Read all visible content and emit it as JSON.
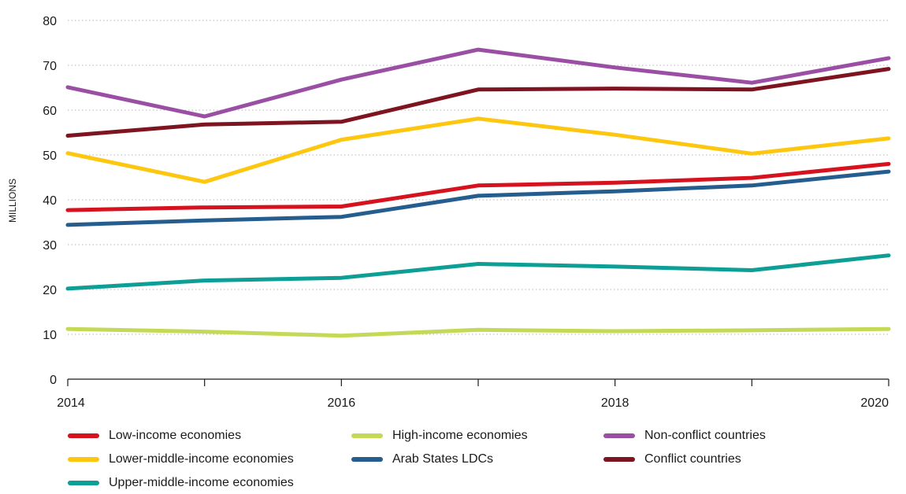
{
  "chart_data": {
    "type": "line",
    "title": "",
    "xlabel": "",
    "ylabel": "MILLIONS",
    "x": [
      2014,
      2015,
      2016,
      2017,
      2018,
      2019,
      2020
    ],
    "x_tick_labels": [
      "2014",
      "2016",
      "2018",
      "2020"
    ],
    "y_tick_labels": [
      "0",
      "10",
      "20",
      "30",
      "40",
      "50",
      "60",
      "70",
      "80"
    ],
    "ylim": [
      0,
      80
    ],
    "grid": "horizontal dotted",
    "legend_position": "bottom",
    "series": [
      {
        "name": "Low-income economies",
        "color": "#d7121f",
        "values": [
          37.7,
          38.3,
          38.5,
          43.2,
          43.8,
          44.9,
          48.0
        ]
      },
      {
        "name": "Lower-middle-income economies",
        "color": "#fdc70f",
        "values": [
          50.4,
          44.0,
          53.4,
          58.1,
          54.5,
          50.3,
          53.7
        ]
      },
      {
        "name": "Upper-middle-income economies",
        "color": "#0d9e95",
        "values": [
          20.2,
          22.0,
          22.6,
          25.7,
          25.1,
          24.3,
          27.6
        ]
      },
      {
        "name": "High-income economies",
        "color": "#c4d957",
        "values": [
          11.2,
          10.6,
          9.7,
          11.0,
          10.7,
          10.9,
          11.2
        ]
      },
      {
        "name": "Arab States LDCs",
        "color": "#255d8f",
        "values": [
          34.4,
          35.4,
          36.2,
          40.9,
          41.9,
          43.2,
          46.3
        ]
      },
      {
        "name": "Non-conflict countries",
        "color": "#9a4fa4",
        "values": [
          65.1,
          58.6,
          66.8,
          73.5,
          69.5,
          66.1,
          71.6
        ]
      },
      {
        "name": "Conflict countries",
        "color": "#7e1420",
        "values": [
          54.3,
          56.8,
          57.4,
          64.6,
          64.8,
          64.6,
          69.2
        ]
      }
    ]
  }
}
